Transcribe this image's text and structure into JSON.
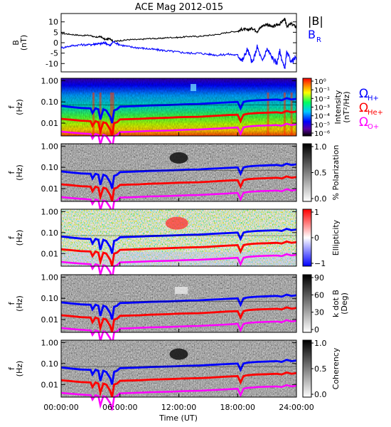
{
  "title": "ACE Mag 2012-015",
  "chart_data": [
    {
      "type": "line",
      "ylabel": "B\n(nT)",
      "ylim": [
        -14,
        14
      ],
      "yticks": [
        10,
        5,
        0,
        -5,
        -10
      ],
      "xlim": [
        0,
        24
      ],
      "legend": [
        {
          "name": "|B|",
          "color": "#000000"
        },
        {
          "name": "B_R",
          "color": "#0000ff"
        }
      ],
      "series": [
        {
          "name": "|B|",
          "color": "#000000",
          "x": [
            0,
            1,
            2,
            3,
            3.5,
            4,
            4.5,
            5,
            5.3,
            6,
            7,
            8,
            9,
            10,
            11,
            12,
            13,
            14,
            15,
            16,
            17,
            18,
            18.5,
            19,
            19.5,
            20,
            20.5,
            21,
            21.5,
            22,
            22.3,
            22.8,
            23,
            23.5,
            24
          ],
          "values": [
            4.5,
            4.0,
            3.5,
            3.5,
            2.5,
            3.0,
            1.5,
            2.0,
            0.5,
            1.0,
            1.5,
            1.5,
            2.0,
            2.0,
            2.5,
            2.5,
            3.0,
            3.0,
            3.5,
            4.0,
            5.0,
            5.5,
            6.5,
            6.0,
            7.0,
            5.5,
            8.0,
            9.0,
            7.5,
            8.5,
            9.0,
            11.5,
            8.0,
            9.0,
            7.5
          ]
        },
        {
          "name": "B_R",
          "color": "#0000ff",
          "x": [
            0,
            1,
            2,
            3,
            3.5,
            4,
            4.5,
            5,
            5.3,
            6,
            7,
            8,
            9,
            10,
            11,
            12,
            13,
            14,
            15,
            16,
            17,
            18,
            18.5,
            19,
            19.5,
            20,
            20.5,
            21,
            21.5,
            22,
            22.3,
            22.8,
            23,
            23.5,
            24
          ],
          "values": [
            -2.5,
            -1.5,
            -1.0,
            -1.0,
            -0.5,
            -0.5,
            0.0,
            -1.5,
            0.5,
            -1.0,
            -2.0,
            -2.5,
            -3.0,
            -3.5,
            -4.0,
            -4.5,
            -5.0,
            -5.0,
            -5.5,
            -6.0,
            -5.5,
            -6.0,
            -8.5,
            -3.0,
            -10.0,
            -2.0,
            -9.0,
            -3.0,
            -7.0,
            -10.0,
            -4.0,
            -13.0,
            -5.0,
            -9.0,
            -7.0
          ]
        }
      ]
    },
    {
      "type": "heatmap",
      "ylabel": "f\n(Hz)",
      "scale": "log",
      "yticks": [
        "1.00",
        "0.10",
        "0.01"
      ],
      "colorbar": {
        "label": "Intensity\n(nT²/Hz)",
        "ticks": [
          "10⁰",
          "10⁻¹",
          "10⁻²",
          "10⁻³",
          "10⁻⁴",
          "10⁻⁵",
          "10⁻⁶"
        ],
        "colormap": "rainbow"
      },
      "legend": [
        {
          "name": "ΩH+",
          "color": "#0000ff"
        },
        {
          "name": "ΩHe+",
          "color": "#ff0000"
        },
        {
          "name": "ΩO+",
          "color": "#ff00ff"
        }
      ]
    },
    {
      "type": "heatmap",
      "ylabel": "f\n(Hz)",
      "scale": "log",
      "yticks": [
        "1.00",
        "0.10",
        "0.01"
      ],
      "colorbar": {
        "label": "% Polarization",
        "ticks": [
          "1.0",
          "0.5",
          "0.0"
        ],
        "colormap": "gray"
      }
    },
    {
      "type": "heatmap",
      "ylabel": "f\n(Hz)",
      "scale": "log",
      "yticks": [
        "1.00",
        "0.10",
        "0.01"
      ],
      "colorbar": {
        "label": "Ellipticity",
        "ticks": [
          "1",
          "0",
          "−1"
        ],
        "colormap": "bwr"
      }
    },
    {
      "type": "heatmap",
      "ylabel": "f\n(Hz)",
      "scale": "log",
      "yticks": [
        "1.00",
        "0.10",
        "0.01"
      ],
      "colorbar": {
        "label": "k dot B\n(Deg)",
        "ticks": [
          "90",
          "60",
          "30",
          "0"
        ],
        "colormap": "gray"
      }
    },
    {
      "type": "heatmap",
      "ylabel": "f\n(Hz)",
      "scale": "log",
      "yticks": [
        "1.00",
        "0.10",
        "0.01"
      ],
      "colorbar": {
        "label": "Coherency",
        "ticks": [
          "1.0",
          "0.5",
          "0.0"
        ],
        "colormap": "gray"
      }
    }
  ],
  "gyrofrequency_lines": {
    "x": [
      0,
      1,
      2,
      3,
      3.2,
      3.5,
      3.8,
      4,
      4.3,
      4.6,
      5,
      5.2,
      5.4,
      5.7,
      6,
      7,
      8,
      9,
      10,
      11,
      12,
      13,
      14,
      15,
      16,
      17,
      18,
      18.3,
      18.6,
      19,
      19.5,
      20,
      21,
      22,
      22.5,
      23,
      23.5,
      24
    ],
    "H+": [
      0.065,
      0.058,
      0.052,
      0.05,
      0.03,
      0.05,
      0.045,
      0.015,
      0.045,
      0.04,
      0.02,
      0.01,
      0.04,
      0.045,
      0.06,
      0.062,
      0.065,
      0.068,
      0.07,
      0.072,
      0.075,
      0.078,
      0.08,
      0.085,
      0.09,
      0.095,
      0.1,
      0.05,
      0.1,
      0.11,
      0.115,
      0.12,
      0.125,
      0.13,
      0.12,
      0.15,
      0.13,
      0.14
    ],
    "He+": [
      0.016,
      0.0145,
      0.013,
      0.0125,
      0.0075,
      0.0125,
      0.011,
      0.004,
      0.011,
      0.01,
      0.005,
      0.0025,
      0.01,
      0.011,
      0.015,
      0.0155,
      0.016,
      0.017,
      0.0175,
      0.018,
      0.019,
      0.0195,
      0.02,
      0.021,
      0.0225,
      0.024,
      0.025,
      0.0125,
      0.025,
      0.0275,
      0.029,
      0.03,
      0.031,
      0.0325,
      0.03,
      0.0375,
      0.0325,
      0.035
    ],
    "O+": [
      0.004,
      0.0036,
      0.0033,
      0.0031,
      0.0019,
      0.0031,
      0.0028,
      0.001,
      0.0028,
      0.0025,
      0.0013,
      0.0006,
      0.0025,
      0.0028,
      0.0038,
      0.0039,
      0.0041,
      0.0043,
      0.0044,
      0.0045,
      0.0047,
      0.0049,
      0.005,
      0.0053,
      0.0056,
      0.0059,
      0.0063,
      0.0031,
      0.0063,
      0.0069,
      0.0072,
      0.0075,
      0.0078,
      0.0081,
      0.0075,
      0.0094,
      0.0081,
      0.0088
    ]
  },
  "x_axis": {
    "label": "Time (UT)",
    "ticks": [
      "00:00:00",
      "06:00:00",
      "12:00:00",
      "18:00:00",
      "24:00:00"
    ]
  },
  "colors": {
    "H+": "#0000ff",
    "He+": "#ff0000",
    "O+": "#ff00ff",
    "B": "#000000",
    "BR": "#0000ff"
  }
}
